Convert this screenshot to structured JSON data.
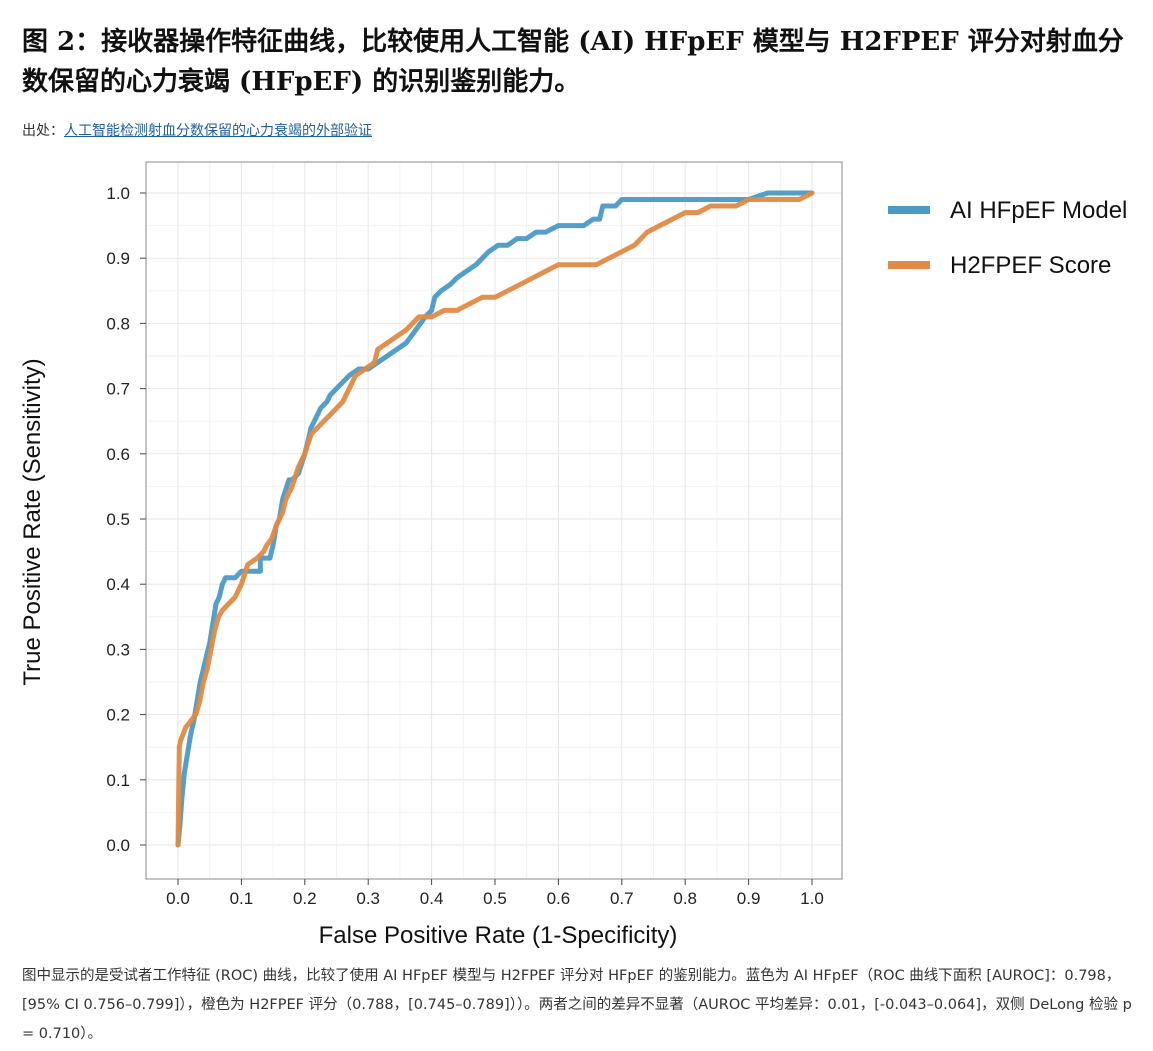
{
  "figure": {
    "title": "图 2：接收器操作特征曲线，比较使用人工智能 (AI) HFpEF 模型与 H2FPEF 评分对射血分数保留的心力衰竭 (HFpEF) 的识别鉴别能力。",
    "source_label": "出处：",
    "source_link": "人工智能检测射血分数保留的心力衰竭的外部验证",
    "caption": "图中显示的是受试者工作特征 (ROC) 曲线，比较了使用 AI HFpEF 模型与 H2FPEF 评分对 HFpEF 的鉴别能力。蓝色为 AI HFpEF（ROC 曲线下面积 [AUROC]：0.798，[95% CI 0.756–0.799]），橙色为 H2FPEF 评分（0.788，[0.745–0.789]））。两者之间的差异不显著（AUROC 平均差异：0.01，[-0.043–0.064]，双侧 DeLong 检验 p = 0.710）。"
  },
  "chart_data": {
    "type": "line",
    "xlabel": "False Positive Rate (1-Specificity)",
    "ylabel": "True Positive Rate (Sensitivity)",
    "xlim": [
      0,
      1
    ],
    "ylim": [
      0,
      1
    ],
    "xticks": [
      "0.0",
      "0.1",
      "0.2",
      "0.3",
      "0.4",
      "0.5",
      "0.6",
      "0.7",
      "0.8",
      "0.9",
      "1.0"
    ],
    "yticks": [
      "0.0",
      "0.1",
      "0.2",
      "0.3",
      "0.4",
      "0.5",
      "0.6",
      "0.7",
      "0.8",
      "0.9",
      "1.0"
    ],
    "grid": true,
    "legend_position": "right",
    "series": [
      {
        "name": "AI HFpEF Model",
        "color": "#4a9ac6",
        "points": [
          [
            0,
            0
          ],
          [
            0.003,
            0.03
          ],
          [
            0.006,
            0.07
          ],
          [
            0.01,
            0.11
          ],
          [
            0.015,
            0.14
          ],
          [
            0.02,
            0.17
          ],
          [
            0.025,
            0.19
          ],
          [
            0.03,
            0.22
          ],
          [
            0.035,
            0.25
          ],
          [
            0.04,
            0.27
          ],
          [
            0.045,
            0.29
          ],
          [
            0.05,
            0.31
          ],
          [
            0.055,
            0.34
          ],
          [
            0.06,
            0.37
          ],
          [
            0.065,
            0.38
          ],
          [
            0.07,
            0.4
          ],
          [
            0.075,
            0.41
          ],
          [
            0.09,
            0.41
          ],
          [
            0.1,
            0.42
          ],
          [
            0.115,
            0.42
          ],
          [
            0.13,
            0.42
          ],
          [
            0.13,
            0.44
          ],
          [
            0.145,
            0.44
          ],
          [
            0.15,
            0.46
          ],
          [
            0.155,
            0.49
          ],
          [
            0.16,
            0.5
          ],
          [
            0.165,
            0.53
          ],
          [
            0.175,
            0.56
          ],
          [
            0.18,
            0.56
          ],
          [
            0.19,
            0.57
          ],
          [
            0.2,
            0.6
          ],
          [
            0.205,
            0.62
          ],
          [
            0.21,
            0.64
          ],
          [
            0.22,
            0.66
          ],
          [
            0.225,
            0.67
          ],
          [
            0.235,
            0.68
          ],
          [
            0.24,
            0.69
          ],
          [
            0.25,
            0.7
          ],
          [
            0.26,
            0.71
          ],
          [
            0.27,
            0.72
          ],
          [
            0.285,
            0.73
          ],
          [
            0.3,
            0.73
          ],
          [
            0.315,
            0.74
          ],
          [
            0.33,
            0.75
          ],
          [
            0.345,
            0.76
          ],
          [
            0.36,
            0.77
          ],
          [
            0.375,
            0.79
          ],
          [
            0.39,
            0.81
          ],
          [
            0.4,
            0.82
          ],
          [
            0.405,
            0.84
          ],
          [
            0.415,
            0.85
          ],
          [
            0.43,
            0.86
          ],
          [
            0.44,
            0.87
          ],
          [
            0.455,
            0.88
          ],
          [
            0.47,
            0.89
          ],
          [
            0.48,
            0.9
          ],
          [
            0.49,
            0.91
          ],
          [
            0.505,
            0.92
          ],
          [
            0.52,
            0.92
          ],
          [
            0.535,
            0.93
          ],
          [
            0.55,
            0.93
          ],
          [
            0.565,
            0.94
          ],
          [
            0.58,
            0.94
          ],
          [
            0.6,
            0.95
          ],
          [
            0.62,
            0.95
          ],
          [
            0.64,
            0.95
          ],
          [
            0.655,
            0.96
          ],
          [
            0.665,
            0.96
          ],
          [
            0.67,
            0.98
          ],
          [
            0.69,
            0.98
          ],
          [
            0.7,
            0.99
          ],
          [
            0.72,
            0.99
          ],
          [
            0.74,
            0.99
          ],
          [
            0.76,
            0.99
          ],
          [
            0.8,
            0.99
          ],
          [
            0.84,
            0.99
          ],
          [
            0.88,
            0.99
          ],
          [
            0.9,
            0.99
          ],
          [
            0.93,
            1.0
          ],
          [
            0.96,
            1.0
          ],
          [
            1.0,
            1.0
          ]
        ]
      },
      {
        "name": "H2FPEF Score",
        "color": "#e08a45",
        "points": [
          [
            0,
            0
          ],
          [
            0.002,
            0.15
          ],
          [
            0.004,
            0.16
          ],
          [
            0.008,
            0.17
          ],
          [
            0.012,
            0.18
          ],
          [
            0.02,
            0.19
          ],
          [
            0.028,
            0.2
          ],
          [
            0.034,
            0.22
          ],
          [
            0.04,
            0.25
          ],
          [
            0.046,
            0.27
          ],
          [
            0.052,
            0.3
          ],
          [
            0.058,
            0.33
          ],
          [
            0.064,
            0.35
          ],
          [
            0.07,
            0.36
          ],
          [
            0.08,
            0.37
          ],
          [
            0.09,
            0.38
          ],
          [
            0.1,
            0.4
          ],
          [
            0.11,
            0.43
          ],
          [
            0.125,
            0.44
          ],
          [
            0.135,
            0.45
          ],
          [
            0.14,
            0.46
          ],
          [
            0.148,
            0.47
          ],
          [
            0.155,
            0.49
          ],
          [
            0.165,
            0.51
          ],
          [
            0.17,
            0.53
          ],
          [
            0.18,
            0.55
          ],
          [
            0.19,
            0.58
          ],
          [
            0.2,
            0.6
          ],
          [
            0.21,
            0.63
          ],
          [
            0.22,
            0.64
          ],
          [
            0.23,
            0.65
          ],
          [
            0.24,
            0.66
          ],
          [
            0.25,
            0.67
          ],
          [
            0.26,
            0.68
          ],
          [
            0.27,
            0.7
          ],
          [
            0.28,
            0.72
          ],
          [
            0.295,
            0.73
          ],
          [
            0.31,
            0.74
          ],
          [
            0.315,
            0.76
          ],
          [
            0.33,
            0.77
          ],
          [
            0.345,
            0.78
          ],
          [
            0.36,
            0.79
          ],
          [
            0.37,
            0.8
          ],
          [
            0.38,
            0.81
          ],
          [
            0.4,
            0.81
          ],
          [
            0.42,
            0.82
          ],
          [
            0.44,
            0.82
          ],
          [
            0.46,
            0.83
          ],
          [
            0.48,
            0.84
          ],
          [
            0.5,
            0.84
          ],
          [
            0.52,
            0.85
          ],
          [
            0.54,
            0.86
          ],
          [
            0.56,
            0.87
          ],
          [
            0.58,
            0.88
          ],
          [
            0.6,
            0.89
          ],
          [
            0.62,
            0.89
          ],
          [
            0.64,
            0.89
          ],
          [
            0.66,
            0.89
          ],
          [
            0.68,
            0.9
          ],
          [
            0.7,
            0.91
          ],
          [
            0.72,
            0.92
          ],
          [
            0.74,
            0.94
          ],
          [
            0.76,
            0.95
          ],
          [
            0.78,
            0.96
          ],
          [
            0.8,
            0.97
          ],
          [
            0.82,
            0.97
          ],
          [
            0.84,
            0.98
          ],
          [
            0.86,
            0.98
          ],
          [
            0.88,
            0.98
          ],
          [
            0.9,
            0.99
          ],
          [
            0.92,
            0.99
          ],
          [
            0.95,
            0.99
          ],
          [
            0.98,
            0.99
          ],
          [
            1.0,
            1.0
          ]
        ]
      }
    ]
  }
}
